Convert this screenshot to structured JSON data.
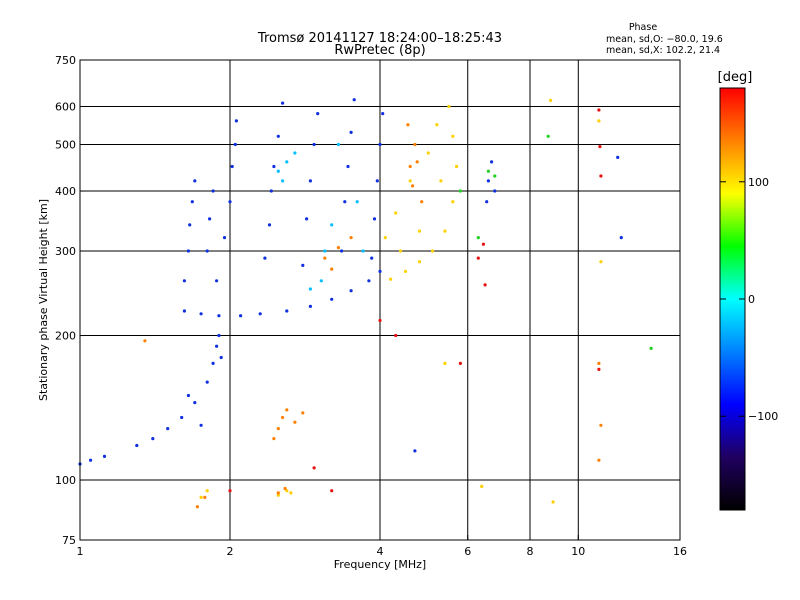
{
  "chart_data": {
    "type": "scatter",
    "title": "Tromsø 20141127 18:24:00–18:25:43",
    "subtitle": "RwPretec (8p)",
    "xlabel": "Frequency [MHz]",
    "ylabel": "Stationary phase Virtual Height [km]",
    "x_scale": "log",
    "y_scale": "log",
    "xlim": [
      1,
      16
    ],
    "ylim": [
      75,
      750
    ],
    "grid": true,
    "x_ticks": [
      {
        "value": 1,
        "label": "1"
      },
      {
        "value": 2,
        "label": "2"
      },
      {
        "value": 4,
        "label": "4"
      },
      {
        "value": 6,
        "label": "6"
      },
      {
        "value": 8,
        "label": "8"
      },
      {
        "value": 10,
        "label": "10"
      },
      {
        "value": 16,
        "label": "16"
      }
    ],
    "x_grid_values": [
      2,
      4,
      6,
      8,
      10
    ],
    "y_ticks": [
      {
        "value": 75,
        "label": "75"
      },
      {
        "value": 100,
        "label": "100"
      },
      {
        "value": 200,
        "label": "200"
      },
      {
        "value": 300,
        "label": "300"
      },
      {
        "value": 400,
        "label": "400"
      },
      {
        "value": 500,
        "label": "500"
      },
      {
        "value": 600,
        "label": "600"
      },
      {
        "value": 750,
        "label": "750"
      }
    ],
    "y_grid_values": [
      100,
      200,
      300,
      400,
      500,
      600
    ],
    "stats": {
      "title": "Phase",
      "line_o": "mean, sd,O: −80.0, 19.6",
      "line_x": "mean, sd,X: 102.2, 21.4"
    },
    "colorbar": {
      "label": "[deg]",
      "range": [
        -180,
        180
      ],
      "ticks": [
        {
          "value": 100,
          "label": "100"
        },
        {
          "value": 0,
          "label": "0"
        },
        {
          "value": -100,
          "label": "−100"
        }
      ],
      "stops": [
        "#ff0000",
        "#ff8000",
        "#ffff00",
        "#00ff00",
        "#00ffff",
        "#0080ff",
        "#0000ff",
        "#200060",
        "#000000"
      ]
    },
    "series": [
      {
        "component": "O-mode (blue)",
        "color": "#1030e0",
        "points": [
          [
            1.62,
            225
          ],
          [
            1.75,
            222
          ],
          [
            1.9,
            220
          ],
          [
            2.1,
            220
          ],
          [
            2.3,
            222
          ],
          [
            2.6,
            225
          ],
          [
            2.9,
            230
          ],
          [
            3.2,
            238
          ],
          [
            3.5,
            248
          ],
          [
            3.8,
            260
          ],
          [
            4.0,
            272
          ],
          [
            1.62,
            260
          ],
          [
            1.65,
            300
          ],
          [
            1.66,
            340
          ],
          [
            1.68,
            380
          ],
          [
            1.7,
            420
          ],
          [
            1.8,
            300
          ],
          [
            1.82,
            350
          ],
          [
            1.85,
            400
          ],
          [
            1.88,
            260
          ],
          [
            1.95,
            320
          ],
          [
            2.0,
            380
          ],
          [
            2.02,
            450
          ],
          [
            2.05,
            500
          ],
          [
            2.06,
            560
          ],
          [
            2.35,
            290
          ],
          [
            2.4,
            340
          ],
          [
            2.42,
            400
          ],
          [
            2.45,
            450
          ],
          [
            2.5,
            520
          ],
          [
            2.55,
            610
          ],
          [
            2.8,
            280
          ],
          [
            2.85,
            350
          ],
          [
            2.9,
            420
          ],
          [
            2.95,
            500
          ],
          [
            3.0,
            580
          ],
          [
            3.35,
            300
          ],
          [
            3.4,
            380
          ],
          [
            3.45,
            450
          ],
          [
            3.5,
            530
          ],
          [
            3.55,
            620
          ],
          [
            3.85,
            290
          ],
          [
            3.9,
            350
          ],
          [
            3.95,
            420
          ],
          [
            4.0,
            500
          ],
          [
            4.05,
            580
          ],
          [
            6.55,
            380
          ],
          [
            6.6,
            420
          ],
          [
            6.7,
            460
          ],
          [
            6.8,
            400
          ],
          [
            1.0,
            108
          ],
          [
            1.05,
            110
          ],
          [
            1.12,
            112
          ],
          [
            1.3,
            118
          ],
          [
            1.4,
            122
          ],
          [
            1.5,
            128
          ],
          [
            1.6,
            135
          ],
          [
            1.7,
            145
          ],
          [
            1.8,
            160
          ],
          [
            1.85,
            175
          ],
          [
            1.88,
            190
          ],
          [
            1.9,
            200
          ],
          [
            1.92,
            180
          ],
          [
            1.75,
            130
          ],
          [
            1.65,
            150
          ],
          [
            4.7,
            115
          ],
          [
            12.0,
            470
          ],
          [
            12.2,
            320
          ]
        ]
      },
      {
        "component": "O-mode (cyan)",
        "color": "#00c0ff",
        "points": [
          [
            2.5,
            440
          ],
          [
            2.6,
            460
          ],
          [
            2.7,
            480
          ],
          [
            2.55,
            420
          ],
          [
            3.05,
            260
          ],
          [
            3.1,
            300
          ],
          [
            3.2,
            340
          ],
          [
            2.9,
            250
          ],
          [
            3.6,
            380
          ],
          [
            3.7,
            300
          ],
          [
            3.3,
            500
          ]
        ]
      },
      {
        "component": "X-mode (yellow)",
        "color": "#ffd000",
        "points": [
          [
            4.2,
            262
          ],
          [
            4.5,
            272
          ],
          [
            4.8,
            285
          ],
          [
            5.1,
            300
          ],
          [
            5.4,
            330
          ],
          [
            5.6,
            380
          ],
          [
            5.7,
            450
          ],
          [
            5.6,
            520
          ],
          [
            5.5,
            600
          ],
          [
            5.2,
            550
          ],
          [
            5.0,
            480
          ],
          [
            4.6,
            420
          ],
          [
            4.3,
            360
          ],
          [
            4.1,
            320
          ],
          [
            4.4,
            300
          ],
          [
            4.8,
            330
          ],
          [
            5.3,
            420
          ],
          [
            1.75,
            92
          ],
          [
            1.8,
            95
          ],
          [
            2.6,
            95
          ],
          [
            2.5,
            93
          ],
          [
            2.65,
            94
          ],
          [
            5.4,
            175
          ],
          [
            6.4,
            97
          ],
          [
            8.8,
            618
          ],
          [
            8.9,
            90
          ],
          [
            11.0,
            560
          ],
          [
            11.1,
            285
          ]
        ]
      },
      {
        "component": "X-mode (orange)",
        "color": "#ff8000",
        "points": [
          [
            3.1,
            290
          ],
          [
            3.3,
            305
          ],
          [
            3.5,
            320
          ],
          [
            3.2,
            275
          ],
          [
            4.6,
            450
          ],
          [
            4.7,
            500
          ],
          [
            4.55,
            550
          ],
          [
            4.65,
            410
          ],
          [
            4.85,
            380
          ],
          [
            4.75,
            460
          ],
          [
            2.5,
            128
          ],
          [
            2.55,
            135
          ],
          [
            2.6,
            140
          ],
          [
            2.45,
            122
          ],
          [
            2.7,
            132
          ],
          [
            2.8,
            138
          ],
          [
            1.72,
            88
          ],
          [
            1.78,
            92
          ],
          [
            2.5,
            94
          ],
          [
            2.58,
            96
          ],
          [
            1.35,
            195
          ],
          [
            11.0,
            175
          ],
          [
            11.1,
            130
          ],
          [
            11.0,
            110
          ]
        ]
      },
      {
        "component": "X-mode (red)",
        "color": "#e81010",
        "points": [
          [
            3.2,
            95
          ],
          [
            4.0,
            215
          ],
          [
            6.3,
            290
          ],
          [
            6.45,
            310
          ],
          [
            6.5,
            255
          ],
          [
            11.0,
            590
          ],
          [
            11.05,
            495
          ],
          [
            11.1,
            430
          ],
          [
            11.0,
            170
          ],
          [
            2.0,
            95
          ],
          [
            5.8,
            175
          ],
          [
            4.3,
            200
          ],
          [
            2.95,
            106
          ]
        ]
      },
      {
        "component": "X-mode (green)",
        "color": "#20d020",
        "points": [
          [
            6.8,
            430
          ],
          [
            6.6,
            440
          ],
          [
            5.8,
            400
          ],
          [
            6.3,
            320
          ],
          [
            14.0,
            188
          ],
          [
            8.7,
            520
          ]
        ]
      }
    ]
  }
}
